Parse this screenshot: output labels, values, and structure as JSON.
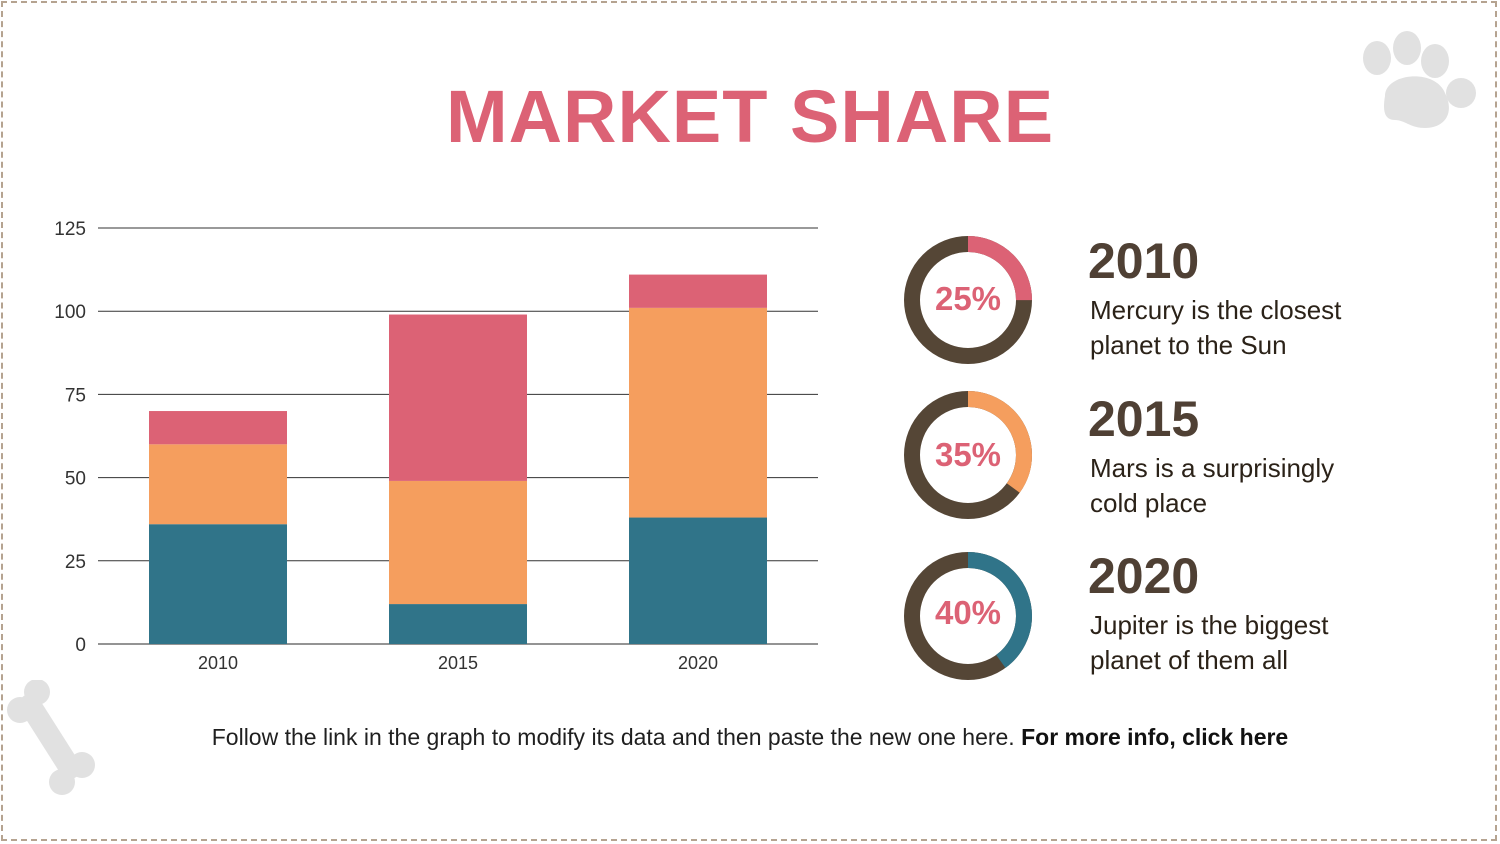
{
  "slide": {
    "title": "MARKET SHARE",
    "footer_text": "Follow the link in the graph to modify its data and then paste the new one here.",
    "footer_link": "For more info, click here"
  },
  "colors": {
    "title": "#dc6275",
    "pink": "#dc6275",
    "orange": "#f59e5e",
    "teal": "#307489",
    "brown": "#554636",
    "grey_decor": "#e1e1e1"
  },
  "stats": [
    {
      "year": "2010",
      "percent_label": "25%",
      "percent": 25,
      "color": "#dc6275",
      "desc_line1": "Mercury is the closest",
      "desc_line2": "planet to the Sun"
    },
    {
      "year": "2015",
      "percent_label": "35%",
      "percent": 35,
      "color": "#f59e5e",
      "desc_line1": "Mars is a surprisingly",
      "desc_line2": "cold place"
    },
    {
      "year": "2020",
      "percent_label": "40%",
      "percent": 40,
      "color": "#307489",
      "desc_line1": "Jupiter is the biggest",
      "desc_line2": "planet of them all"
    }
  ],
  "chart_data": {
    "type": "bar",
    "stacked": true,
    "title": "",
    "xlabel": "",
    "ylabel": "",
    "categories": [
      "2010",
      "2015",
      "2020"
    ],
    "ylim": [
      0,
      125
    ],
    "yticks": [
      0,
      25,
      50,
      75,
      100,
      125
    ],
    "grid": true,
    "legend": "none",
    "series": [
      {
        "values": [
          36,
          12,
          38
        ],
        "color": "#307489"
      },
      {
        "values": [
          24,
          37,
          63
        ],
        "color": "#f59e5e"
      },
      {
        "values": [
          10,
          50,
          10
        ],
        "color": "#dc6275"
      }
    ]
  }
}
